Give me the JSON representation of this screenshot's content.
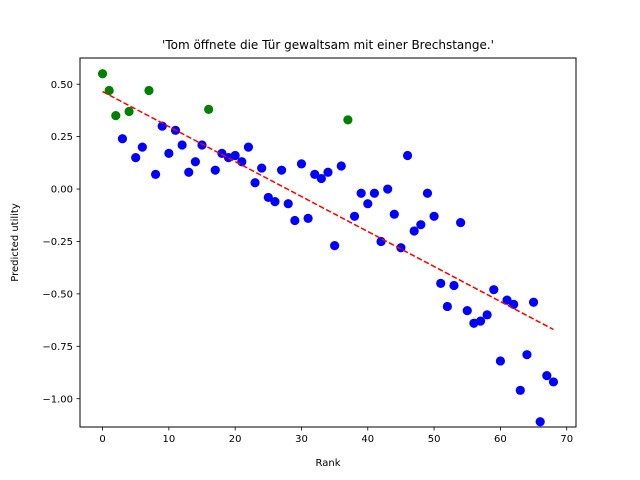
{
  "chart_data": {
    "type": "scatter",
    "title": "'Tom öffnete die Tür gewaltsam mit einer Brechstange.'",
    "xlabel": "Rank",
    "ylabel": "Predicted utility",
    "xlim": [
      -3.4,
      71.4
    ],
    "ylim": [
      -1.135,
      0.625
    ],
    "xticks": [
      0,
      10,
      20,
      30,
      40,
      50,
      60,
      70
    ],
    "yticks": [
      -1.0,
      -0.75,
      -0.5,
      -0.25,
      0.0,
      0.25,
      0.5
    ],
    "ytick_labels": [
      "−1.00",
      "−0.75",
      "−0.50",
      "−0.25",
      "0.00",
      "0.25",
      "0.50"
    ],
    "grid": false,
    "colors": {
      "green": "#008000",
      "blue": "#0000ff",
      "trend": "#ff0000"
    },
    "series": [
      {
        "color": "green",
        "points": [
          [
            0,
            0.55
          ],
          [
            1,
            0.47
          ],
          [
            2,
            0.35
          ],
          [
            4,
            0.37
          ],
          [
            7,
            0.47
          ],
          [
            16,
            0.38
          ],
          [
            37,
            0.33
          ]
        ]
      },
      {
        "color": "blue",
        "points": [
          [
            3,
            0.24
          ],
          [
            5,
            0.15
          ],
          [
            6,
            0.2
          ],
          [
            8,
            0.07
          ],
          [
            9,
            0.3
          ],
          [
            10,
            0.17
          ],
          [
            11,
            0.28
          ],
          [
            12,
            0.21
          ],
          [
            13,
            0.08
          ],
          [
            14,
            0.13
          ],
          [
            15,
            0.21
          ],
          [
            17,
            0.09
          ],
          [
            18,
            0.17
          ],
          [
            19,
            0.15
          ],
          [
            20,
            0.16
          ],
          [
            21,
            0.13
          ],
          [
            22,
            0.2
          ],
          [
            23,
            0.03
          ],
          [
            24,
            0.1
          ],
          [
            25,
            -0.04
          ],
          [
            26,
            -0.06
          ],
          [
            27,
            0.09
          ],
          [
            28,
            -0.07
          ],
          [
            29,
            -0.15
          ],
          [
            30,
            0.12
          ],
          [
            31,
            -0.14
          ],
          [
            32,
            0.07
          ],
          [
            33,
            0.05
          ],
          [
            34,
            0.08
          ],
          [
            35,
            -0.27
          ],
          [
            36,
            0.11
          ],
          [
            38,
            -0.13
          ],
          [
            39,
            -0.02
          ],
          [
            40,
            -0.07
          ],
          [
            41,
            -0.02
          ],
          [
            42,
            -0.25
          ],
          [
            43,
            0.0
          ],
          [
            44,
            -0.12
          ],
          [
            45,
            -0.28
          ],
          [
            46,
            0.16
          ],
          [
            47,
            -0.2
          ],
          [
            48,
            -0.17
          ],
          [
            49,
            -0.02
          ],
          [
            50,
            -0.13
          ],
          [
            51,
            -0.45
          ],
          [
            52,
            -0.56
          ],
          [
            53,
            -0.46
          ],
          [
            54,
            -0.16
          ],
          [
            55,
            -0.58
          ],
          [
            56,
            -0.64
          ],
          [
            57,
            -0.63
          ],
          [
            58,
            -0.6
          ],
          [
            59,
            -0.48
          ],
          [
            60,
            -0.82
          ],
          [
            61,
            -0.53
          ],
          [
            62,
            -0.55
          ],
          [
            63,
            -0.96
          ],
          [
            64,
            -0.79
          ],
          [
            65,
            -0.54
          ],
          [
            66,
            -1.11
          ],
          [
            67,
            -0.89
          ],
          [
            68,
            -0.92
          ]
        ]
      }
    ],
    "trendline": {
      "style": "dashed",
      "color": "trend",
      "x": [
        0,
        68
      ],
      "y": [
        0.465,
        -0.67
      ]
    }
  }
}
